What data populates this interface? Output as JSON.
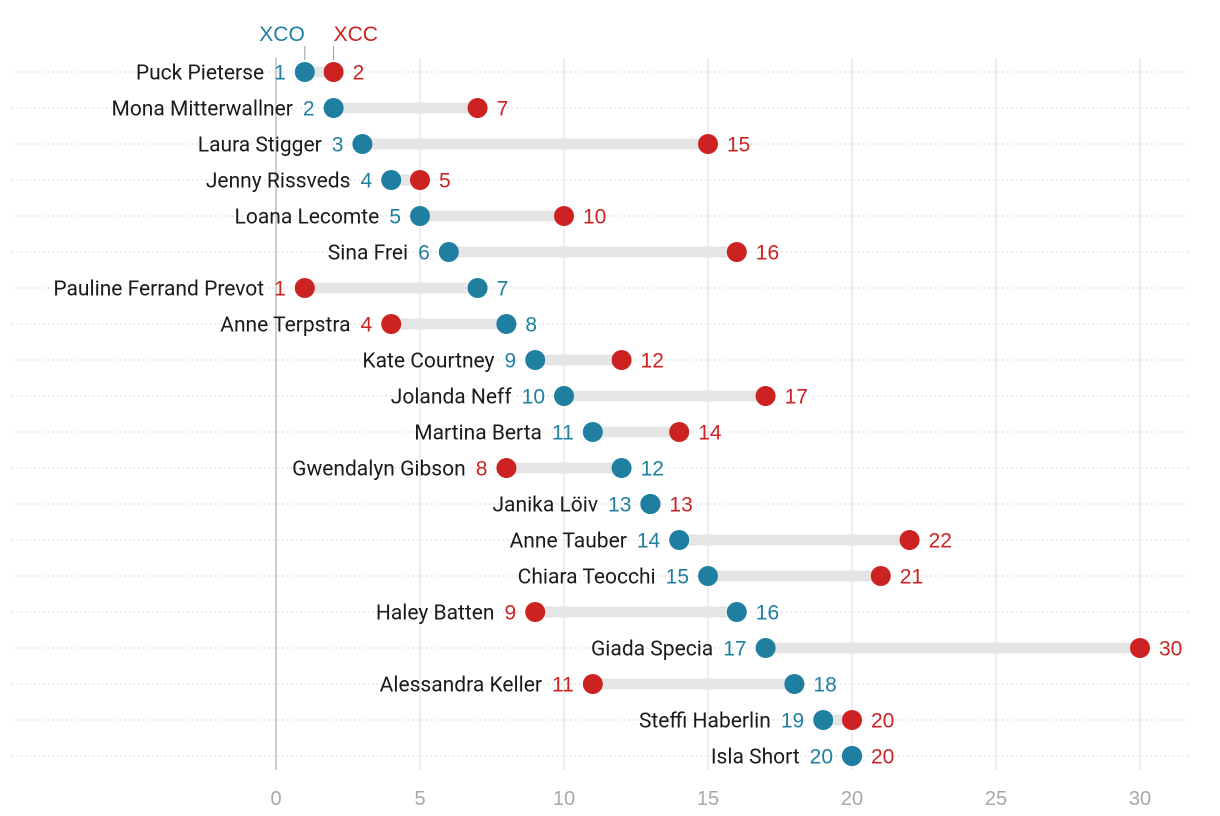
{
  "colors": {
    "xco": "#1f7fa0",
    "xcc": "#cc2222"
  },
  "legend": {
    "xco_label": "XCO",
    "xcc_label": "XCC"
  },
  "chart_data": {
    "type": "dumbbell",
    "title": "",
    "xlabel": "",
    "ylabel": "",
    "xlim": [
      0,
      31
    ],
    "x_ticks": [
      0,
      5,
      10,
      15,
      20,
      25,
      30
    ],
    "grid": true,
    "legend_position": "top-left",
    "series": [
      {
        "key": "xco",
        "name": "XCO"
      },
      {
        "key": "xcc",
        "name": "XCC"
      }
    ],
    "rows": [
      {
        "name": "Puck Pieterse",
        "xco": 1,
        "xcc": 2
      },
      {
        "name": "Mona Mitterwallner",
        "xco": 2,
        "xcc": 7
      },
      {
        "name": "Laura Stigger",
        "xco": 3,
        "xcc": 15
      },
      {
        "name": "Jenny Rissveds",
        "xco": 4,
        "xcc": 5
      },
      {
        "name": "Loana Lecomte",
        "xco": 5,
        "xcc": 10
      },
      {
        "name": "Sina Frei",
        "xco": 6,
        "xcc": 16
      },
      {
        "name": "Pauline Ferrand Prevot",
        "xco": 7,
        "xcc": 1
      },
      {
        "name": "Anne Terpstra",
        "xco": 8,
        "xcc": 4
      },
      {
        "name": "Kate Courtney",
        "xco": 9,
        "xcc": 12
      },
      {
        "name": "Jolanda Neff",
        "xco": 10,
        "xcc": 17
      },
      {
        "name": "Martina Berta",
        "xco": 11,
        "xcc": 14
      },
      {
        "name": "Gwendalyn Gibson",
        "xco": 12,
        "xcc": 8
      },
      {
        "name": "Janika Löiv",
        "xco": 13,
        "xcc": 13
      },
      {
        "name": "Anne Tauber",
        "xco": 14,
        "xcc": 22
      },
      {
        "name": "Chiara Teocchi",
        "xco": 15,
        "xcc": 21
      },
      {
        "name": "Haley Batten",
        "xco": 16,
        "xcc": 9
      },
      {
        "name": "Giada Specia",
        "xco": 17,
        "xcc": 30
      },
      {
        "name": "Alessandra Keller",
        "xco": 18,
        "xcc": 11
      },
      {
        "name": "Steffi Haberlin",
        "xco": 19,
        "xcc": 20
      },
      {
        "name": "Isla Short",
        "xco": 20,
        "xcc": 20
      }
    ]
  }
}
